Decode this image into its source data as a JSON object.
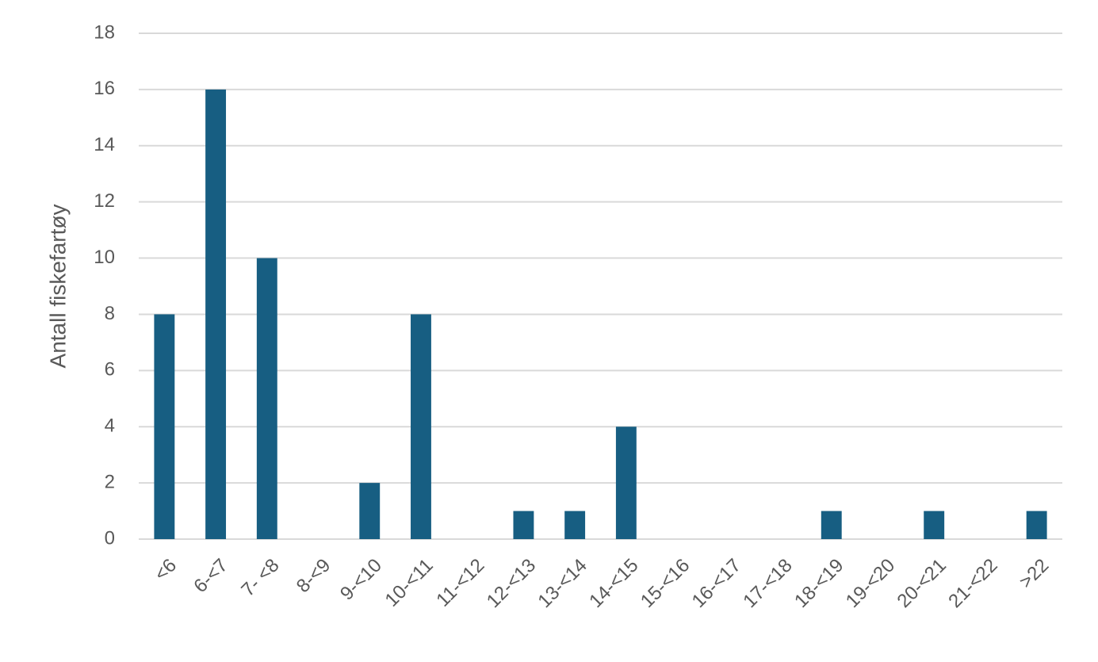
{
  "chart_data": {
    "type": "bar",
    "y_label": "Antall fiskefartøy",
    "categories": [
      "<6",
      "6-<7",
      "7- <8",
      "8-<9",
      "9-<10",
      "10-<11",
      "11-<12",
      "12-<13",
      "13-<14",
      "14-<15",
      "15-<16",
      "16-<17",
      "17-<18",
      "18-<19",
      "19-<20",
      "20-<21",
      "21-<22",
      ">22"
    ],
    "values": [
      8,
      16,
      10,
      0,
      2,
      8,
      0,
      1,
      1,
      4,
      0,
      0,
      0,
      1,
      0,
      1,
      0,
      1
    ],
    "color": "#175e82",
    "ylim": [
      0,
      18
    ],
    "yticks": [
      0,
      2,
      4,
      6,
      8,
      10,
      12,
      14,
      16,
      18
    ],
    "grid": true
  }
}
